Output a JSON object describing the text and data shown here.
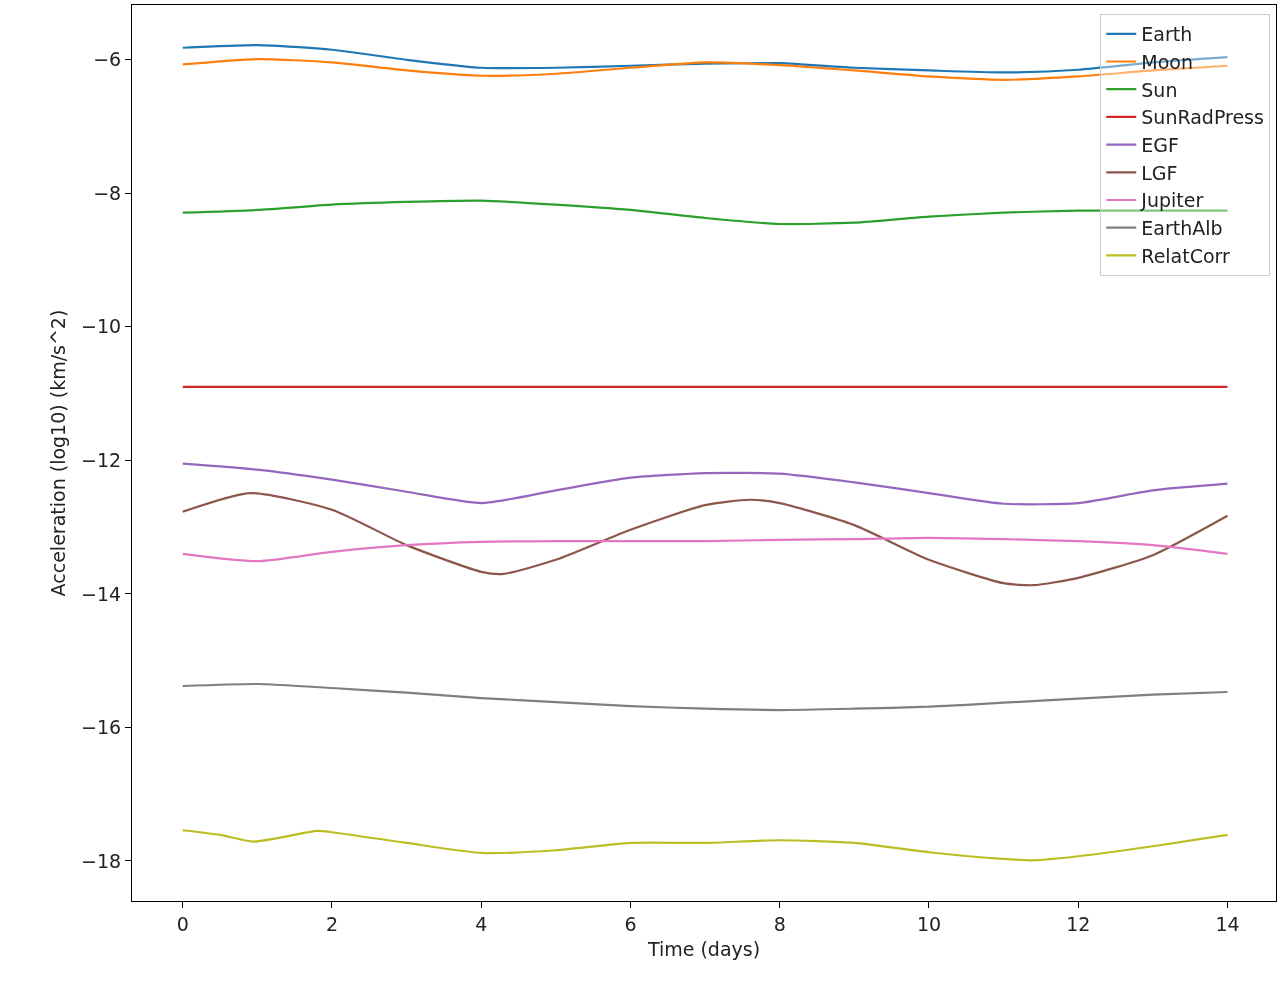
{
  "chart_data": {
    "type": "line",
    "xlabel": "Time (days)",
    "ylabel": "Acceleration (log10) (km/s^2)",
    "xlim": [
      -0.68,
      14.65
    ],
    "ylim": [
      -18.6,
      -5.18
    ],
    "xticks": [
      0,
      2,
      4,
      6,
      8,
      10,
      12,
      14
    ],
    "yticks": [
      {
        "value": -6,
        "label": "−6"
      },
      {
        "value": -8,
        "label": "−8"
      },
      {
        "value": -10,
        "label": "−10"
      },
      {
        "value": -12,
        "label": "−12"
      },
      {
        "value": -14,
        "label": "−14"
      },
      {
        "value": -16,
        "label": "−16"
      },
      {
        "value": -18,
        "label": "−18"
      }
    ],
    "grid": false,
    "legend": "top right",
    "marker": "none",
    "line_style": "solid",
    "x": [
      0,
      1,
      2,
      3,
      4,
      5,
      6,
      7,
      8,
      9,
      10,
      11,
      12,
      13,
      14
    ],
    "series": [
      {
        "name": "Earth",
        "color": "#1f77b4",
        "values": [
          -5.82,
          -5.78,
          -5.85,
          -6.0,
          -6.12,
          -6.12,
          -6.09,
          -6.06,
          -6.05,
          -6.12,
          -6.16,
          -6.19,
          -6.15,
          -6.04,
          -5.96
        ]
      },
      {
        "name": "Moon",
        "color": "#ff7f0e",
        "values": [
          -6.07,
          -5.99,
          -6.04,
          -6.16,
          -6.24,
          -6.21,
          -6.12,
          -6.04,
          -6.08,
          -6.16,
          -6.25,
          -6.3,
          -6.25,
          -6.16,
          -6.09
        ]
      },
      {
        "name": "Sun",
        "color": "#2ca02c",
        "values": [
          -8.29,
          -8.25,
          -8.17,
          -8.13,
          -8.11,
          -8.17,
          -8.25,
          -8.37,
          -8.46,
          -8.44,
          -8.35,
          -8.29,
          -8.26,
          -8.26,
          -8.26
        ]
      },
      {
        "name": "SunRadPress",
        "color": "#d62728",
        "values": [
          -10.9,
          -10.9,
          -10.9,
          -10.9,
          -10.9,
          -10.9,
          -10.9,
          -10.9,
          -10.9,
          -10.9,
          -10.9,
          -10.9,
          -10.9,
          -10.9,
          -10.9
        ]
      },
      {
        "name": "EGF",
        "color": "#9467bd",
        "values": [
          -12.05,
          -12.14,
          -12.29,
          -12.47,
          -12.64,
          -12.45,
          -12.26,
          -12.19,
          -12.2,
          -12.33,
          -12.49,
          -12.65,
          -12.64,
          -12.45,
          -12.35
        ]
      },
      {
        "name": "LGF",
        "color": "#8c564b",
        "x": [
          0,
          0.9,
          2,
          3,
          4,
          4.3,
          5,
          6,
          7,
          7.6,
          8,
          9,
          10,
          11,
          11.4,
          12,
          13,
          14
        ],
        "values": [
          -12.77,
          -12.49,
          -12.74,
          -13.27,
          -13.67,
          -13.7,
          -13.49,
          -13.04,
          -12.67,
          -12.59,
          -12.64,
          -12.97,
          -13.49,
          -13.84,
          -13.87,
          -13.76,
          -13.42,
          -12.83
        ]
      },
      {
        "name": "Jupiter",
        "color": "#e377c2",
        "values": [
          -13.4,
          -13.51,
          -13.37,
          -13.27,
          -13.22,
          -13.21,
          -13.21,
          -13.21,
          -13.19,
          -13.18,
          -13.16,
          -13.18,
          -13.21,
          -13.27,
          -13.4
        ]
      },
      {
        "name": "EarthAlb",
        "color": "#7f7f7f",
        "values": [
          -15.38,
          -15.35,
          -15.41,
          -15.48,
          -15.56,
          -15.62,
          -15.68,
          -15.72,
          -15.74,
          -15.72,
          -15.69,
          -15.63,
          -15.57,
          -15.51,
          -15.47
        ]
      },
      {
        "name": "RelatCorr",
        "color": "#bcbd22",
        "x": [
          0,
          0.5,
          0.95,
          1.8,
          2,
          3,
          4,
          5,
          6,
          7,
          8,
          9,
          10,
          11,
          11.4,
          12,
          13,
          14
        ],
        "values": [
          -17.54,
          -17.61,
          -17.71,
          -17.55,
          -17.57,
          -17.73,
          -17.88,
          -17.84,
          -17.73,
          -17.73,
          -17.69,
          -17.73,
          -17.87,
          -17.97,
          -17.99,
          -17.93,
          -17.78,
          -17.61
        ]
      }
    ]
  }
}
